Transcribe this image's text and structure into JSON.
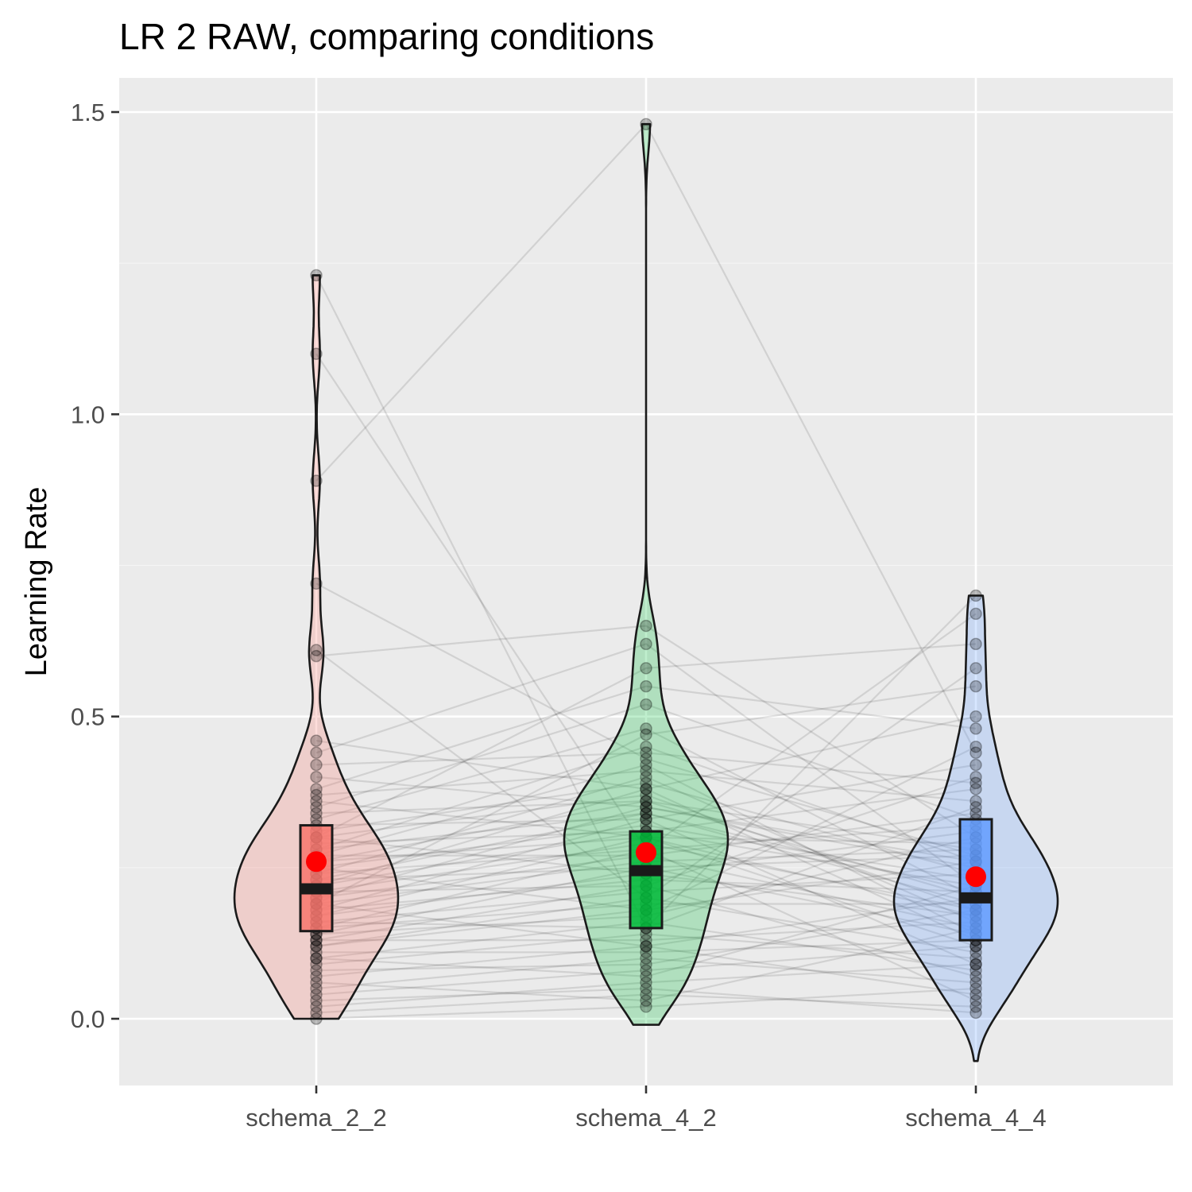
{
  "colors": {
    "panel_background": "#ebebeb",
    "grid_major": "#ffffff",
    "grid_minor": "#f5f5f5",
    "tick": "#333333",
    "outline": "#1a1a1a",
    "mean_point": "#ff0000",
    "paired_line": "#000000",
    "point": "#000000"
  },
  "chart_data": {
    "type": "violin",
    "title": "LR 2 RAW, comparing conditions",
    "xlabel": "",
    "ylabel": "Learning Rate",
    "ylim": [
      -0.11,
      1.61
    ],
    "yticks": [
      0.0,
      0.5,
      1.0,
      1.5
    ],
    "ytick_labels": [
      "0.0",
      "0.5",
      "1.0",
      "1.5"
    ],
    "grid": true,
    "legend": "none",
    "categories": [
      "schema_2_2",
      "schema_4_2",
      "schema_4_4"
    ],
    "series": [
      {
        "category": "schema_2_2",
        "fill_color": "#f8766d",
        "violin_range": [
          0.0,
          1.23
        ],
        "box": {
          "q1": 0.145,
          "median": 0.215,
          "q3": 0.32
        },
        "mean": 0.26
      },
      {
        "category": "schema_4_2",
        "fill_color": "#00ba38",
        "violin_range": [
          -0.01,
          1.48
        ],
        "box": {
          "q1": 0.15,
          "median": 0.245,
          "q3": 0.31
        },
        "mean": 0.275
      },
      {
        "category": "schema_4_4",
        "fill_color": "#619cff",
        "violin_range": [
          -0.07,
          0.7
        ],
        "box": {
          "q1": 0.13,
          "median": 0.2,
          "q3": 0.33
        },
        "mean": 0.235
      }
    ],
    "subjects": [
      [
        0.0,
        0.02,
        0.05
      ],
      [
        0.01,
        0.04,
        0.02
      ],
      [
        0.02,
        0.06,
        0.09
      ],
      [
        0.03,
        0.05,
        0.01
      ],
      [
        0.04,
        0.08,
        0.12
      ],
      [
        0.05,
        0.1,
        0.06
      ],
      [
        0.06,
        0.03,
        0.15
      ],
      [
        0.07,
        0.12,
        0.04
      ],
      [
        0.08,
        0.09,
        0.18
      ],
      [
        0.09,
        0.14,
        0.1
      ],
      [
        0.1,
        0.07,
        0.22
      ],
      [
        0.1,
        0.16,
        0.08
      ],
      [
        0.11,
        0.11,
        0.13
      ],
      [
        0.12,
        0.18,
        0.26
      ],
      [
        0.12,
        0.2,
        0.11
      ],
      [
        0.13,
        0.13,
        0.16
      ],
      [
        0.13,
        0.22,
        0.07
      ],
      [
        0.14,
        0.17,
        0.3
      ],
      [
        0.14,
        0.25,
        0.14
      ],
      [
        0.15,
        0.19,
        0.19
      ],
      [
        0.15,
        0.28,
        0.03
      ],
      [
        0.16,
        0.21,
        0.24
      ],
      [
        0.16,
        0.15,
        0.35
      ],
      [
        0.17,
        0.24,
        0.17
      ],
      [
        0.17,
        0.3,
        0.12
      ],
      [
        0.18,
        0.23,
        0.21
      ],
      [
        0.18,
        0.33,
        0.09
      ],
      [
        0.19,
        0.26,
        0.28
      ],
      [
        0.19,
        0.12,
        0.2
      ],
      [
        0.2,
        0.27,
        0.15
      ],
      [
        0.2,
        0.35,
        0.25
      ],
      [
        0.21,
        0.29,
        0.18
      ],
      [
        0.21,
        0.22,
        0.4
      ],
      [
        0.22,
        0.31,
        0.22
      ],
      [
        0.22,
        0.38,
        0.13
      ],
      [
        0.23,
        0.25,
        0.27
      ],
      [
        0.23,
        0.34,
        0.19
      ],
      [
        0.24,
        0.28,
        0.32
      ],
      [
        0.24,
        0.4,
        0.16
      ],
      [
        0.25,
        0.32,
        0.23
      ],
      [
        0.25,
        0.18,
        0.45
      ],
      [
        0.26,
        0.36,
        0.2
      ],
      [
        0.26,
        0.3,
        0.29
      ],
      [
        0.27,
        0.42,
        0.14
      ],
      [
        0.27,
        0.27,
        0.34
      ],
      [
        0.28,
        0.34,
        0.21
      ],
      [
        0.28,
        0.45,
        0.26
      ],
      [
        0.29,
        0.31,
        0.38
      ],
      [
        0.3,
        0.37,
        0.18
      ],
      [
        0.3,
        0.24,
        0.31
      ],
      [
        0.31,
        0.39,
        0.24
      ],
      [
        0.32,
        0.33,
        0.42
      ],
      [
        0.33,
        0.48,
        0.2
      ],
      [
        0.34,
        0.36,
        0.28
      ],
      [
        0.35,
        0.52,
        0.33
      ],
      [
        0.36,
        0.3,
        0.17
      ],
      [
        0.37,
        0.41,
        0.36
      ],
      [
        0.38,
        0.55,
        0.48
      ],
      [
        0.4,
        0.35,
        0.26
      ],
      [
        0.42,
        0.44,
        0.39
      ],
      [
        0.44,
        0.62,
        0.22
      ],
      [
        0.46,
        0.38,
        0.5
      ],
      [
        0.6,
        0.65,
        0.3
      ],
      [
        0.61,
        0.2,
        0.58
      ],
      [
        0.72,
        0.43,
        0.27
      ],
      [
        0.89,
        1.48,
        0.44
      ],
      [
        1.1,
        0.28,
        0.67
      ],
      [
        1.23,
        0.15,
        0.7
      ],
      [
        0.3,
        0.58,
        0.62
      ],
      [
        0.19,
        0.47,
        0.55
      ]
    ]
  }
}
